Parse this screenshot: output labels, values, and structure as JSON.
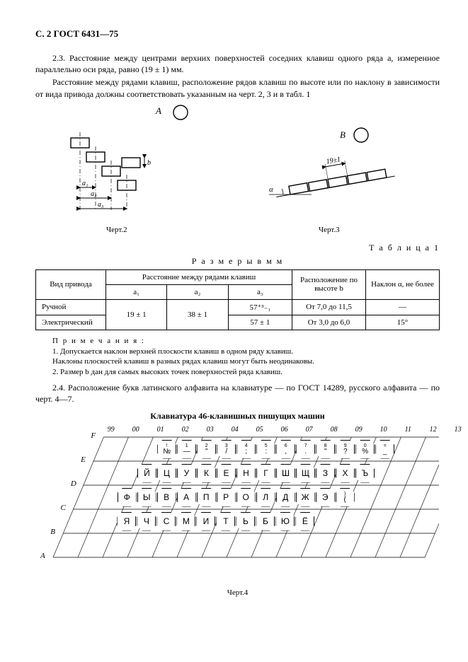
{
  "header": "С. 2 ГОСТ 6431—75",
  "p23a": "2.3. Расстояние между центрами верхних поверхностей соседних клавиш одного ряда a, измеренное параллельно оси ряда, равно (19 ± 1) мм.",
  "p23b": "Расстояние между рядами клавиш, расположение рядов клавиш по высоте или по наклону в зависимости от вида привода должны соответствовать указанным на черт. 2, 3 и в табл. 1",
  "fig2label": "Черт.2",
  "fig3label": "Черт.3",
  "tableLabel": "Т а б л и ц а   1",
  "tableTitle": "Р а з м е р ы  в  м м",
  "th": {
    "drive": "Вид привода",
    "dist": "Расстояние между рядами клавиш",
    "a1": "a₁",
    "a2": "a₂",
    "a3": "a₃",
    "height": "Расположение по высоте b",
    "angle": "Наклон α, не более"
  },
  "rows": {
    "r1c1": "Ручной",
    "r1a1": "19 ± 1",
    "r1a2": "38 ± 1",
    "r1a3": "57⁺³₋₁",
    "r1h": "От 7,0 до 11,5",
    "r1ang": "—",
    "r2c1": "Электрический",
    "r2a3": "57 ± 1",
    "r2h": "От 3,0 до 6,0",
    "r2ang": "15°"
  },
  "notes": {
    "head": "П р и м е ч а н и я :",
    "n1a": "1. Допускается наклон верхней плоскости клавиш в одном ряду клавиш.",
    "n1b": "Наклоны плоскостей клавиш в разных рядах клавиш могут быть неодинаковы.",
    "n2": "2. Размер b дан для самых высоких точек поверхностей ряда клавиш."
  },
  "p24": "2.4. Расположение букв латинского алфавита на клавиатуре — по ГОСТ 14289, русского алфавита — по черт. 4—7.",
  "kbTitle": "Клавиатура 46-клавишных пишущих машин",
  "fig4label": "Черт.4",
  "diag": {
    "A": "А",
    "B": "В",
    "dim": "19±1"
  },
  "rowLabels": [
    "F",
    "E",
    "D",
    "C",
    "B",
    "A"
  ],
  "colLabels": [
    "99",
    "00",
    "01",
    "02",
    "03",
    "04",
    "05",
    "06",
    "07",
    "08",
    "09",
    "10",
    "11",
    "12",
    "13"
  ],
  "kb": {
    "E": [
      {
        "t": "!",
        "b": "№"
      },
      {
        "t": "1",
        "b": "—"
      },
      {
        "t": "2",
        "b": "\""
      },
      {
        "t": "3",
        "b": "/"
      },
      {
        "t": "4",
        "b": ";"
      },
      {
        "t": "5",
        "b": ":"
      },
      {
        "t": "6",
        "b": ","
      },
      {
        "t": "7",
        "b": "."
      },
      {
        "t": "8",
        "b": "\""
      },
      {
        "t": "9",
        "b": "?"
      },
      {
        "t": "0",
        "b": "%"
      },
      {
        "t": "=",
        "b": "_"
      }
    ],
    "D": [
      {
        "b": "Й"
      },
      {
        "b": "Ц"
      },
      {
        "b": "У"
      },
      {
        "b": "К"
      },
      {
        "b": "Е"
      },
      {
        "b": "Н"
      },
      {
        "b": "Г"
      },
      {
        "b": "Ш"
      },
      {
        "b": "Щ"
      },
      {
        "b": "З"
      },
      {
        "b": "Х"
      },
      {
        "b": "Ъ"
      }
    ],
    "C": [
      {
        "b": "Ф"
      },
      {
        "b": "Ы"
      },
      {
        "b": "В"
      },
      {
        "b": "А"
      },
      {
        "b": "П"
      },
      {
        "b": "Р"
      },
      {
        "b": "О"
      },
      {
        "b": "Л"
      },
      {
        "b": "Д"
      },
      {
        "b": "Ж"
      },
      {
        "b": "Э"
      },
      {
        "t": ")",
        "b": "("
      }
    ],
    "B": [
      {
        "b": "Я"
      },
      {
        "b": "Ч"
      },
      {
        "b": "С"
      },
      {
        "b": "М"
      },
      {
        "b": "И"
      },
      {
        "b": "Т"
      },
      {
        "b": "Ь"
      },
      {
        "b": "Б"
      },
      {
        "b": "Ю"
      },
      {
        "b": "Ë"
      }
    ]
  },
  "layout": {
    "rowY": {
      "F": 20,
      "E": 54,
      "D": 88,
      "C": 122,
      "B": 156,
      "A": 190
    },
    "rowX0": {
      "F": 110,
      "E": 95,
      "D": 80,
      "C": 65,
      "B": 50,
      "A": 35
    },
    "keyX0": {
      "E": 108,
      "D": 94,
      "C": 80,
      "B": 94
    },
    "keyStep": 28,
    "shear": 0.42,
    "gridLeft": 25,
    "gridRight": 550,
    "gridTop": 16
  }
}
